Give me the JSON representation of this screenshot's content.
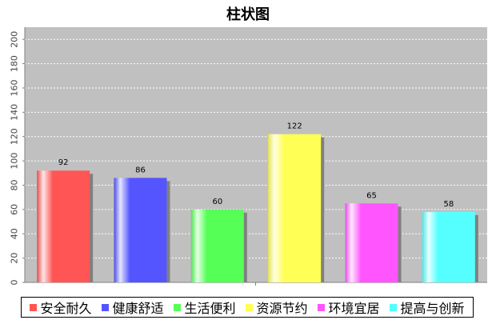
{
  "chart_data": {
    "type": "bar",
    "title": "柱状图",
    "xlabel": "",
    "ylabel": "",
    "categories": [
      "安全耐久",
      "健康舒适",
      "生活便利",
      "资源节约",
      "环境宜居",
      "提高与创新"
    ],
    "values": [
      92,
      86,
      60,
      122,
      65,
      58
    ],
    "colors": [
      "#ff5555",
      "#5555ff",
      "#55ff55",
      "#ffff55",
      "#ff55ff",
      "#55ffff"
    ],
    "ylim": [
      0,
      210
    ],
    "yticks": [
      "0",
      "20",
      "40",
      "60",
      "80",
      "100",
      "120",
      "140",
      "160",
      "180",
      "200"
    ],
    "grid": true,
    "legend_position": "bottom",
    "plot_background": "#c0c0c0"
  }
}
